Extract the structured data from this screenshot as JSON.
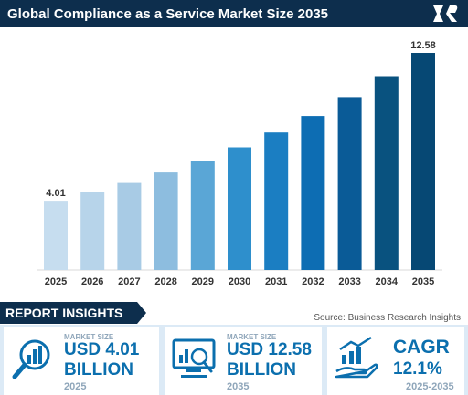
{
  "header": {
    "title": "Global Compliance as a Service Market Size 2035",
    "logo": "business-research-insights-logo"
  },
  "chart_data": {
    "type": "bar",
    "title": "Global Compliance as a Service Market Size 2035",
    "categories": [
      "2025",
      "2026",
      "2027",
      "2028",
      "2029",
      "2030",
      "2031",
      "2032",
      "2033",
      "2034",
      "2035"
    ],
    "values": [
      4.01,
      4.5,
      5.04,
      5.65,
      6.34,
      7.11,
      7.97,
      8.93,
      10.02,
      11.23,
      12.58
    ],
    "data_labels": [
      "4.01",
      "",
      "",
      "",
      "",
      "",
      "",
      "",
      "",
      "",
      "12.58"
    ],
    "colors": [
      "#c6ddef",
      "#b7d4ea",
      "#a8cbe5",
      "#8dbddf",
      "#5aa6d6",
      "#2e8fcc",
      "#1b7ec2",
      "#0d6db3",
      "#0a5b97",
      "#09527f",
      "#064874"
    ],
    "xlabel": "",
    "ylabel": "",
    "grid": false,
    "legend": "none"
  },
  "insights": {
    "heading": "REPORT INSIGHTS",
    "source": "Source: Business Research Insights",
    "cards": [
      {
        "icon": "bar-chart-magnifier-icon",
        "sub": "MARKET SIZE",
        "value": "USD 4.01",
        "unit": "BILLION",
        "year": "2025"
      },
      {
        "icon": "monitor-analytics-icon",
        "sub": "MARKET SIZE",
        "value": "USD 12.58",
        "unit": "BILLION",
        "year": "2035"
      },
      {
        "icon": "growth-hand-icon",
        "sub": "",
        "value": "CAGR",
        "unit": "12.1%",
        "year": "2025-2035"
      }
    ]
  }
}
